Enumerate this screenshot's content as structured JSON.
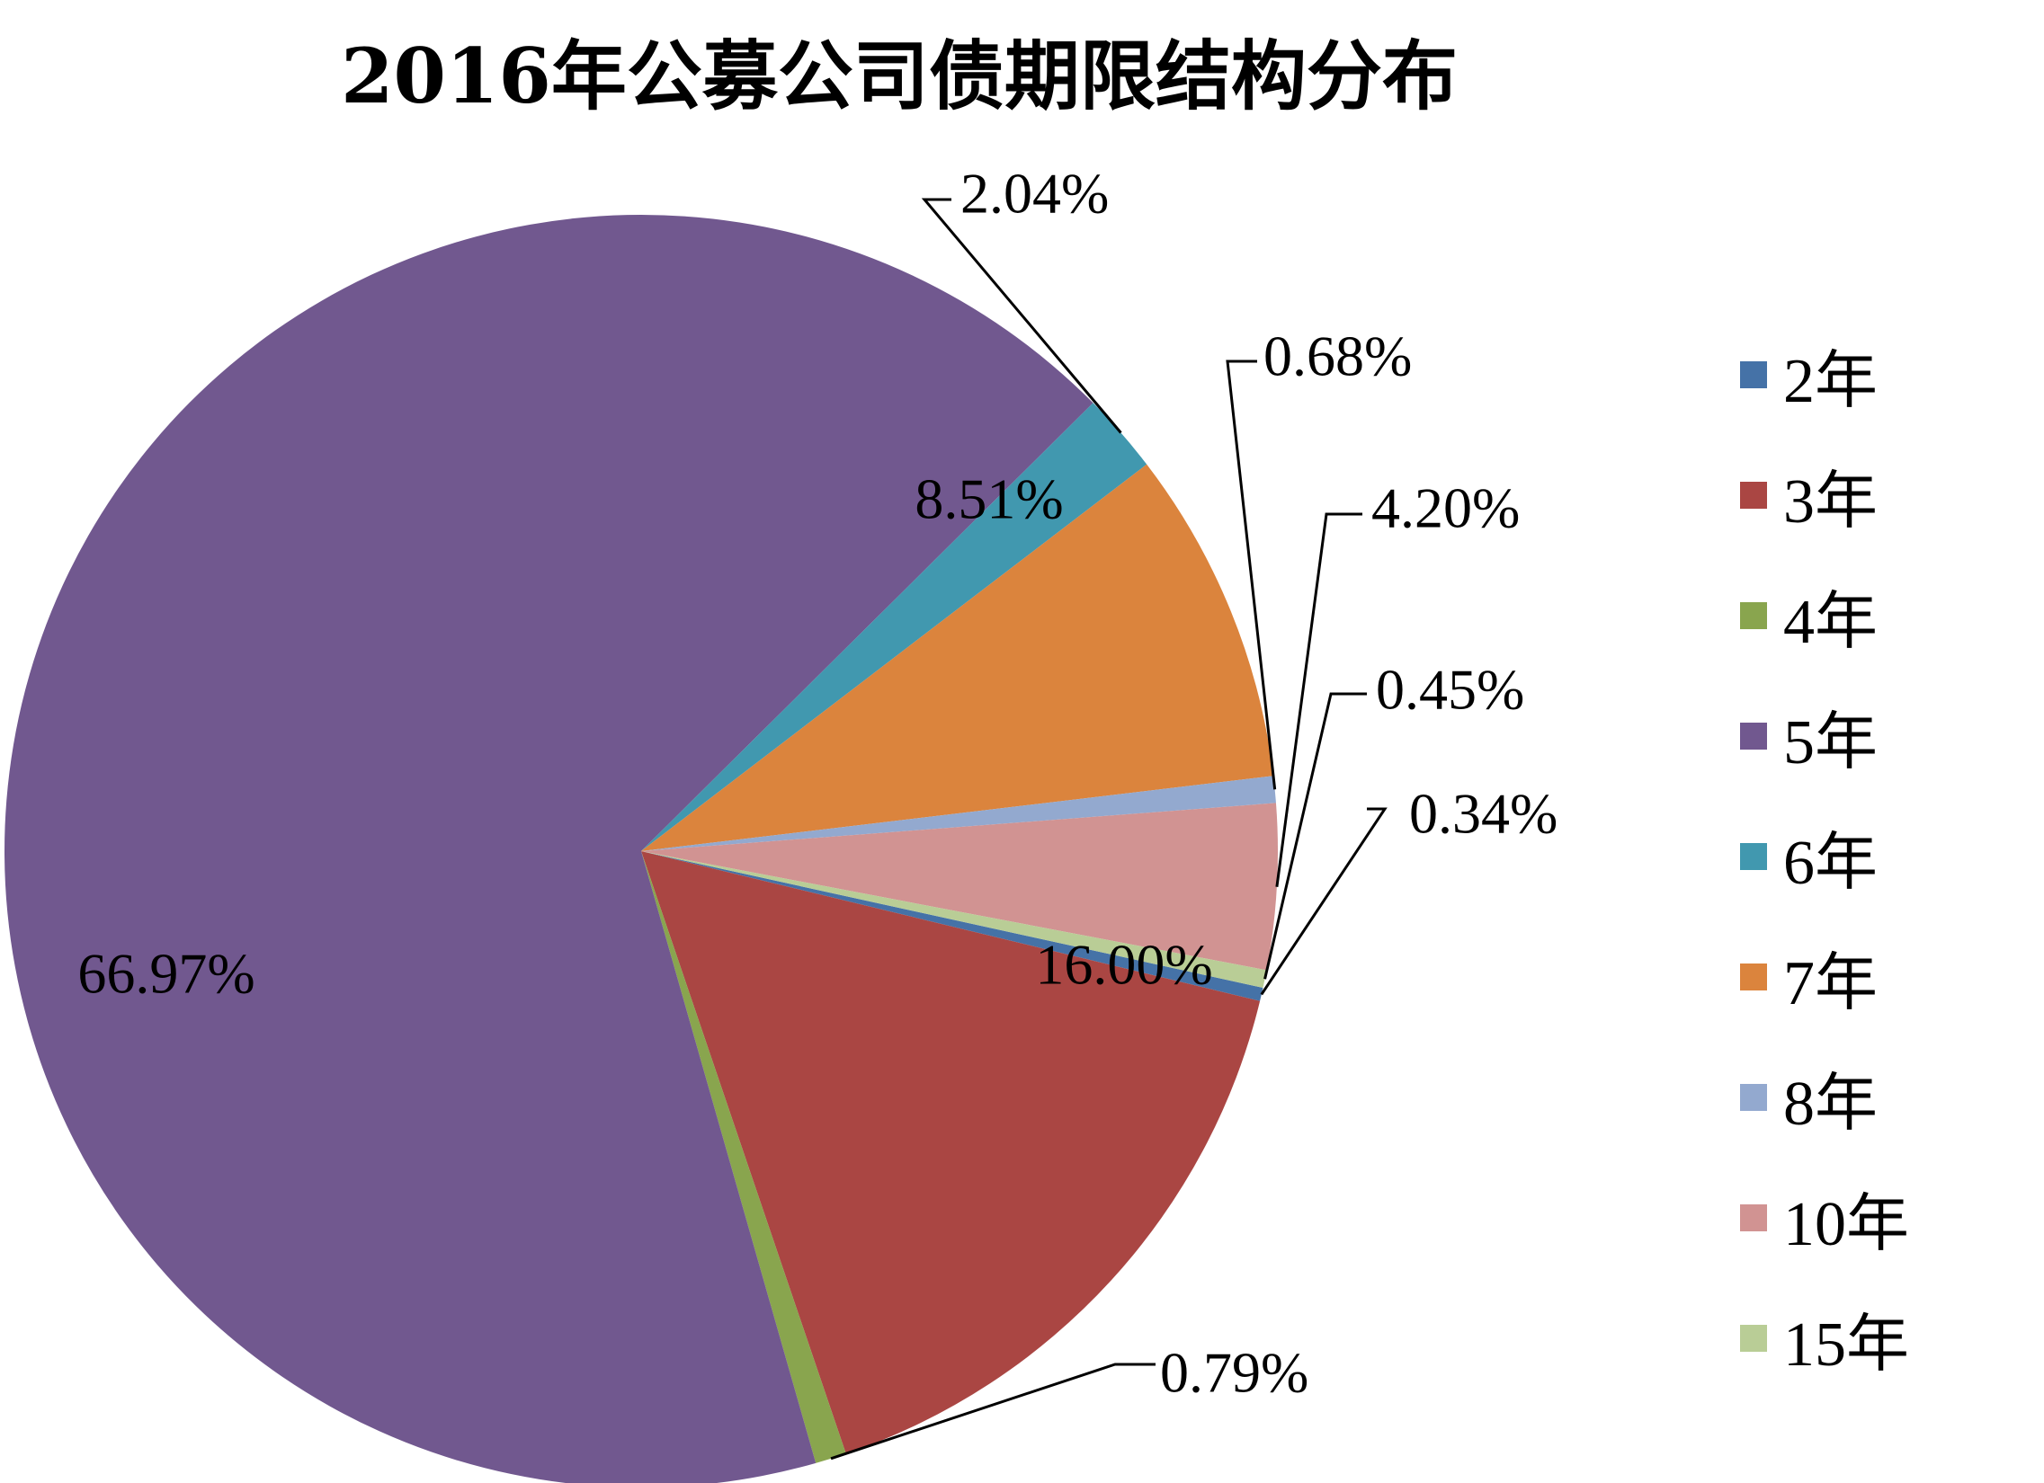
{
  "chart_data": {
    "type": "pie",
    "title": "2016年公募公司债期限结构分布",
    "categories": [
      "2年",
      "3年",
      "4年",
      "5年",
      "6年",
      "7年",
      "8年",
      "10年",
      "15年"
    ],
    "values": [
      0.34,
      16.0,
      0.79,
      66.97,
      2.04,
      8.51,
      0.68,
      4.2,
      0.45
    ],
    "labels": [
      "0.34%",
      "16.00%",
      "0.79%",
      "66.97%",
      "2.04%",
      "8.51%",
      "0.68%",
      "4.20%",
      "0.45%"
    ],
    "colors": [
      "#4572A7",
      "#AA4643",
      "#89A54E",
      "#71588F",
      "#4198AF",
      "#DB843D",
      "#93A9CF",
      "#D19392",
      "#B9CD96"
    ],
    "legend_position": "right"
  }
}
